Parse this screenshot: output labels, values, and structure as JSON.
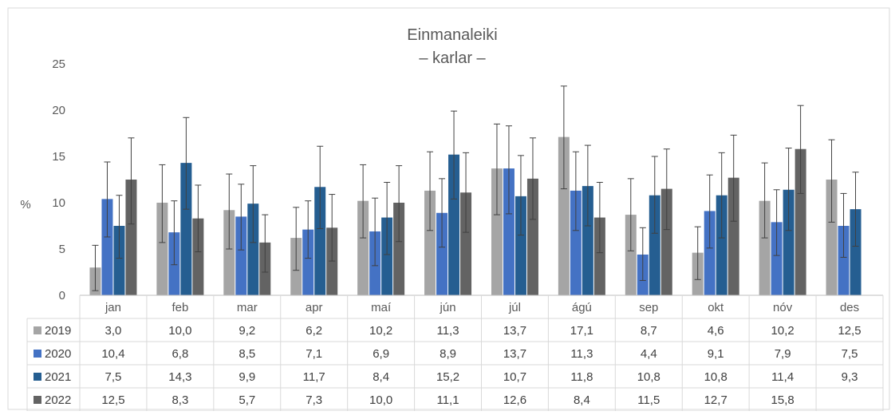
{
  "chart_data": {
    "type": "bar",
    "title": "Einmanaleiki",
    "subtitle": "– karlar –",
    "ylabel": "%",
    "ylim": [
      0,
      25
    ],
    "yticks": [
      0,
      5,
      10,
      15,
      20,
      25
    ],
    "categories": [
      "jan",
      "feb",
      "mar",
      "apr",
      "maí",
      "jún",
      "júl",
      "ágú",
      "sep",
      "okt",
      "nóv",
      "des"
    ],
    "series": [
      {
        "name": "2019",
        "color": "#a5a5a5",
        "labels": [
          "3,0",
          "10,0",
          "9,2",
          "6,2",
          "10,2",
          "11,3",
          "13,7",
          "17,1",
          "8,7",
          "4,6",
          "10,2",
          "12,5"
        ],
        "values": [
          3.0,
          10.0,
          9.2,
          6.2,
          10.2,
          11.3,
          13.7,
          17.1,
          8.7,
          4.6,
          10.2,
          12.5
        ],
        "err_low": [
          0.5,
          5.7,
          5.0,
          2.7,
          6.2,
          7.0,
          8.7,
          11.5,
          4.8,
          1.7,
          6.2,
          7.9
        ],
        "err_high": [
          5.4,
          14.1,
          13.1,
          9.5,
          14.1,
          15.5,
          18.5,
          22.6,
          12.6,
          7.4,
          14.3,
          16.8
        ]
      },
      {
        "name": "2020",
        "color": "#4472c4",
        "labels": [
          "10,4",
          "6,8",
          "8,5",
          "7,1",
          "6,9",
          "8,9",
          "13,7",
          "11,3",
          "4,4",
          "9,1",
          "7,9",
          "7,5"
        ],
        "values": [
          10.4,
          6.8,
          8.5,
          7.1,
          6.9,
          8.9,
          13.7,
          11.3,
          4.4,
          9.1,
          7.9,
          7.5
        ],
        "err_low": [
          6.3,
          3.3,
          4.9,
          4.0,
          3.2,
          5.2,
          8.8,
          7.0,
          1.6,
          5.1,
          4.3,
          4.1
        ],
        "err_high": [
          14.4,
          10.2,
          12.0,
          10.2,
          10.5,
          12.6,
          18.3,
          15.5,
          7.3,
          13.0,
          11.4,
          11.0
        ]
      },
      {
        "name": "2021",
        "color": "#255e91",
        "labels": [
          "7,5",
          "14,3",
          "9,9",
          "11,7",
          "8,4",
          "15,2",
          "10,7",
          "11,8",
          "10,8",
          "10,8",
          "11,4",
          "9,3"
        ],
        "values": [
          7.5,
          14.3,
          9.9,
          11.7,
          8.4,
          15.2,
          10.7,
          11.8,
          10.8,
          10.8,
          11.4,
          9.3
        ],
        "err_low": [
          4.0,
          9.3,
          5.7,
          7.2,
          4.4,
          10.4,
          6.5,
          7.5,
          6.7,
          6.2,
          7.0,
          5.3
        ],
        "err_high": [
          10.8,
          19.2,
          14.0,
          16.1,
          12.2,
          19.9,
          15.1,
          16.2,
          15.0,
          15.4,
          15.9,
          13.3
        ]
      },
      {
        "name": "2022",
        "color": "#636363",
        "labels": [
          "12,5",
          "8,3",
          "5,7",
          "7,3",
          "10,0",
          "11,1",
          "12,6",
          "8,4",
          "11,5",
          "12,7",
          "15,8",
          ""
        ],
        "values": [
          12.5,
          8.3,
          5.7,
          7.3,
          10.0,
          11.1,
          12.6,
          8.4,
          11.5,
          12.7,
          15.8,
          null
        ],
        "err_low": [
          7.7,
          4.7,
          2.5,
          3.7,
          5.8,
          6.8,
          8.2,
          4.6,
          7.1,
          8.0,
          11.0,
          null
        ],
        "err_high": [
          17.0,
          11.9,
          8.7,
          10.9,
          14.0,
          15.4,
          17.0,
          12.2,
          15.8,
          17.3,
          20.5,
          null
        ]
      }
    ],
    "legend": "data-table",
    "grid": false
  }
}
